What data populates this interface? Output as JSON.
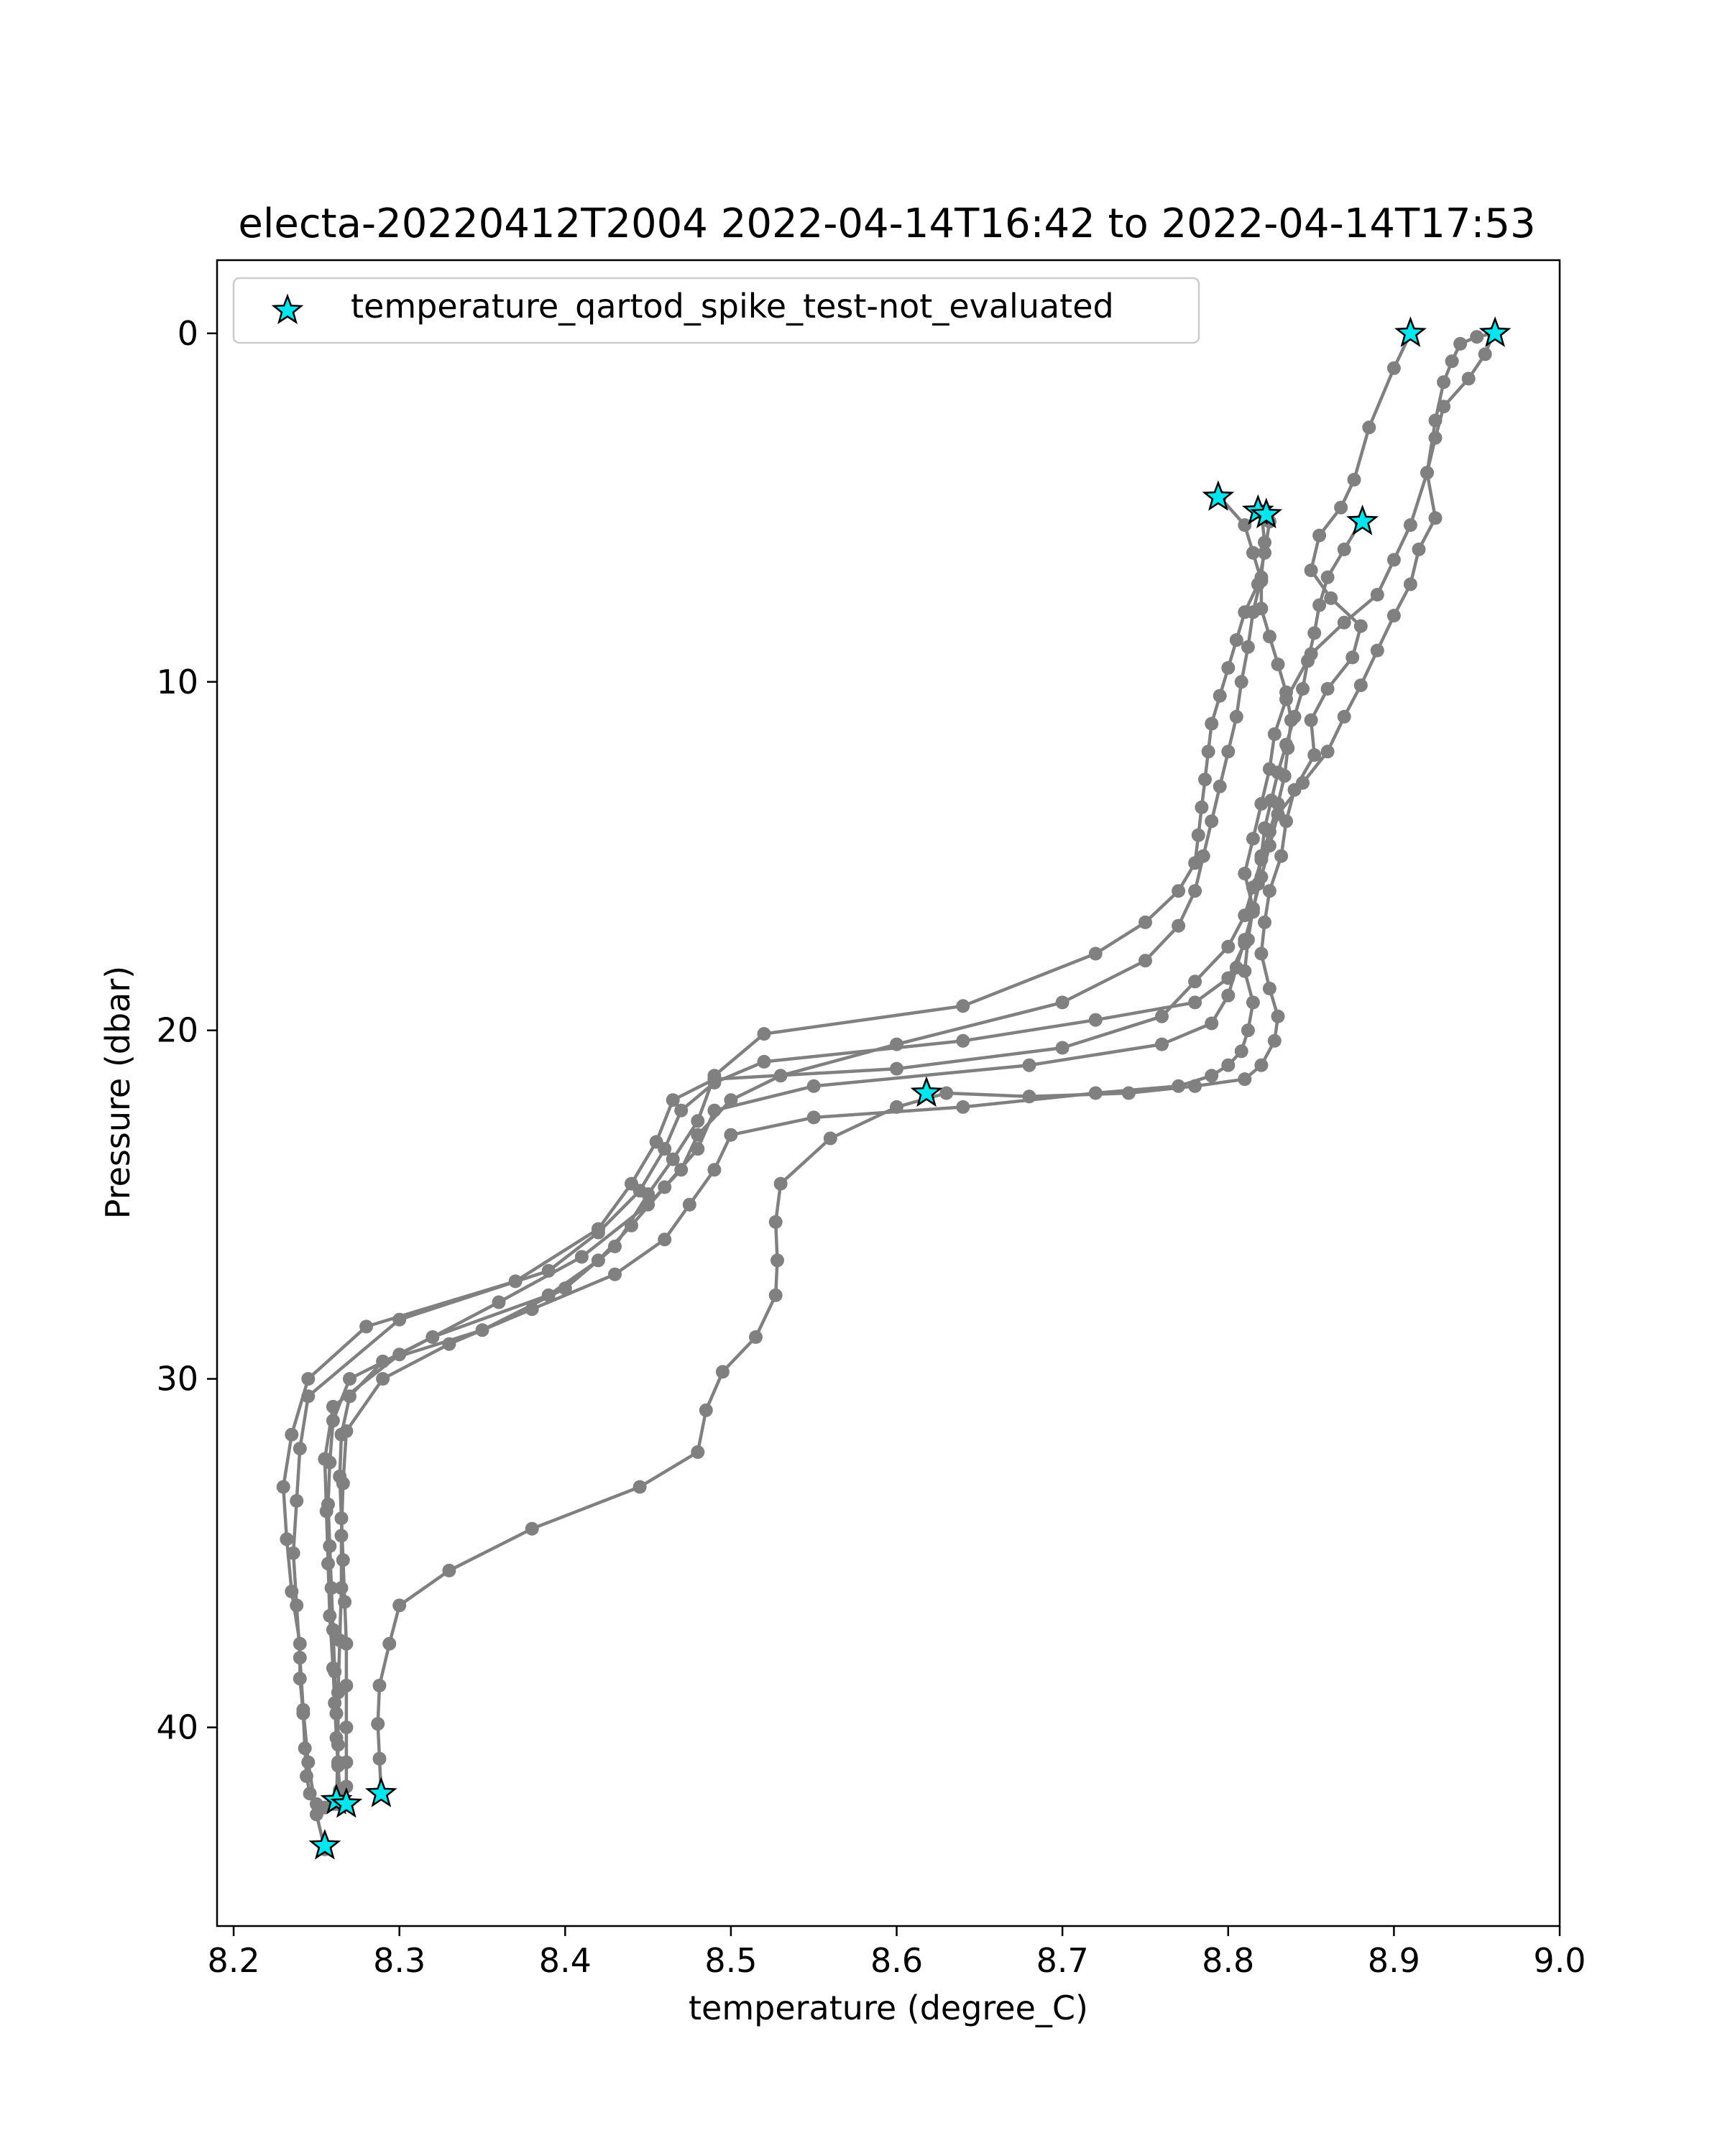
{
  "chart_data": {
    "type": "line",
    "title": "electa-20220412T2004 2022-04-14T16:42 to 2022-04-14T17:53",
    "xlabel": "temperature (degree_C)",
    "ylabel": "Pressure (dbar)",
    "xlim": [
      8.19,
      9.0
    ],
    "ylim": [
      45.7,
      -2.1
    ],
    "y_inverted": true,
    "xticks": [
      8.2,
      8.3,
      8.4,
      8.5,
      8.6,
      8.7,
      8.8,
      8.9,
      9.0
    ],
    "xtick_labels": [
      "8.2",
      "8.3",
      "8.4",
      "8.5",
      "8.6",
      "8.7",
      "8.8",
      "8.9",
      "9.0"
    ],
    "yticks": [
      0,
      10,
      20,
      30,
      40
    ],
    "ytick_labels": [
      "0",
      "10",
      "20",
      "30",
      "40"
    ],
    "grid": false,
    "legend": {
      "location": "upper left",
      "entries": [
        "temperature_qartod_spike_test-not_evaluated"
      ]
    },
    "colors": {
      "profile_line": "#808080",
      "marker_fill": "#00e5ee",
      "marker_edge": "#000000"
    },
    "series": [
      {
        "x": [
          8.91,
          8.9,
          8.885,
          8.876,
          8.868,
          8.855,
          8.85,
          8.862,
          8.88,
          8.875,
          8.86,
          8.85,
          8.852,
          8.84,
          8.835,
          8.832,
          8.825,
          8.822,
          8.82,
          8.825,
          8.83,
          8.828,
          8.82,
          8.81,
          8.78,
          8.74,
          8.68,
          8.63,
          8.6,
          8.56,
          8.53,
          8.527,
          8.528,
          8.527,
          8.515,
          8.495,
          8.485,
          8.48,
          8.445,
          8.38,
          8.33,
          8.3,
          8.294,
          8.288,
          8.287,
          8.288,
          8.289
        ],
        "y": [
          0,
          1,
          2.7,
          4.2,
          5,
          5.8,
          6.8,
          7.6,
          8.4,
          9.3,
          10.2,
          11.1,
          12.1,
          13.1,
          14.0,
          15.0,
          16.0,
          16.9,
          17.8,
          18.8,
          19.6,
          20.3,
          21.0,
          21.4,
          21.6,
          21.8,
          21.9,
          21.8,
          22.2,
          23.1,
          24.4,
          25.5,
          26.6,
          27.6,
          28.8,
          29.8,
          30.9,
          32.1,
          33.1,
          34.3,
          35.5,
          36.5,
          37.6,
          38.8,
          39.9,
          40.9,
          41.9
        ]
      },
      {
        "x": [
          8.96,
          8.955,
          8.945,
          8.93,
          8.925,
          8.92,
          8.925,
          8.915,
          8.91,
          8.9,
          8.89,
          8.88,
          8.87,
          8.86,
          8.845,
          8.83,
          8.825,
          8.82,
          8.815,
          8.812,
          8.81,
          8.815,
          8.812,
          8.808,
          8.8,
          8.79,
          8.77,
          8.72,
          8.64,
          8.55,
          8.5,
          8.49,
          8.475,
          8.46,
          8.43,
          8.38,
          8.33,
          8.29,
          8.268,
          8.266,
          8.265,
          8.265,
          8.264,
          8.263,
          8.263,
          8.262
        ],
        "y": [
          0,
          0.6,
          1.3,
          2.1,
          3,
          4,
          5.3,
          6.2,
          7.2,
          8.1,
          9.1,
          10.1,
          11.0,
          12.0,
          12.9,
          13.8,
          14.7,
          15.6,
          16.5,
          17.4,
          18.3,
          19.2,
          20.0,
          20.6,
          21.0,
          21.3,
          21.6,
          21.8,
          22.2,
          22.5,
          23.0,
          24.0,
          25.0,
          26.0,
          27.0,
          28.0,
          29.0,
          30.0,
          31.5,
          33.0,
          34.5,
          36.0,
          37.5,
          39.0,
          40.5,
          42.2
        ]
      },
      {
        "x": [
          8.96,
          8.95,
          8.94,
          8.935,
          8.93,
          8.925,
          8.92,
          8.91,
          8.9,
          8.89,
          8.87,
          8.85,
          8.835,
          8.828,
          8.825,
          8.82,
          8.815,
          8.81,
          8.815,
          8.81,
          8.8,
          8.78,
          8.72,
          8.64,
          8.52,
          8.49,
          8.47,
          8.46,
          8.445,
          8.42,
          8.39,
          8.3,
          8.245,
          8.24,
          8.238,
          8.236,
          8.238,
          8.24,
          8.242,
          8.245,
          8.25,
          8.255
        ],
        "y": [
          0,
          0.1,
          0.3,
          0.8,
          1.4,
          2.5,
          4,
          5.5,
          6.5,
          7.5,
          8.3,
          9.2,
          10.5,
          11.5,
          12.5,
          13.5,
          14.5,
          15.5,
          16.5,
          17.5,
          18.5,
          19.2,
          19.7,
          20.3,
          20.9,
          21.5,
          22.3,
          23.4,
          24.6,
          25.8,
          26.9,
          28.3,
          30.5,
          32.0,
          33.5,
          35.0,
          36.5,
          38.0,
          39.5,
          41.0,
          42.5,
          43.5
        ]
      },
      {
        "x": [
          8.795,
          8.81,
          8.815,
          8.82,
          8.82,
          8.825,
          8.83,
          8.835,
          8.838,
          8.836,
          8.834,
          8.83,
          8.825,
          8.82,
          8.815,
          8.81,
          8.8,
          8.78,
          8.76,
          8.7,
          8.6,
          8.49,
          8.465,
          8.455,
          8.44,
          8.42,
          8.37,
          8.28,
          8.245,
          8.235,
          8.23,
          8.232,
          8.235,
          8.24,
          8.24,
          8.242,
          8.243,
          8.244,
          8.246,
          8.25,
          8.255,
          8.26
        ],
        "y": [
          4.7,
          5.5,
          6.3,
          7.1,
          7.9,
          8.7,
          9.5,
          10.3,
          11.1,
          11.9,
          12.7,
          13.5,
          14.3,
          15.1,
          15.9,
          16.7,
          17.6,
          18.6,
          19.6,
          20.5,
          21.1,
          21.4,
          22.0,
          23.2,
          24.4,
          25.7,
          27.2,
          28.5,
          30.0,
          31.6,
          33.1,
          34.6,
          36.1,
          37.6,
          38.6,
          39.6,
          40.6,
          41.4,
          41.9,
          42.2,
          42.3,
          42.2
        ]
      },
      {
        "x": [
          8.82,
          8.822,
          8.82,
          8.815,
          8.812,
          8.808,
          8.805,
          8.8,
          8.795,
          8.79,
          8.785,
          8.78,
          8.77,
          8.75,
          8.7,
          8.6,
          8.53,
          8.5,
          8.48,
          8.47,
          8.45,
          8.41,
          8.36,
          8.3,
          8.26,
          8.255,
          8.256,
          8.257,
          8.258,
          8.26,
          8.261,
          8.262,
          8.263,
          8.264,
          8.265
        ],
        "y": [
          5.1,
          6.0,
          7.0,
          8.0,
          9.0,
          10.0,
          11.0,
          12.0,
          13.0,
          14.0,
          15.0,
          16.0,
          17.0,
          18.0,
          19.2,
          20.4,
          21.3,
          22.0,
          23.0,
          24.0,
          25.0,
          26.5,
          27.8,
          29.3,
          30.8,
          32.3,
          33.8,
          35.3,
          36.8,
          38.3,
          39.3,
          40.3,
          41.1,
          41.8,
          42.2
        ]
      },
      {
        "x": [
          8.825,
          8.822,
          8.818,
          8.81,
          8.805,
          8.8,
          8.795,
          8.79,
          8.788,
          8.786,
          8.784,
          8.782,
          8.78,
          8.77,
          8.75,
          8.72,
          8.64,
          8.52,
          8.49,
          8.48,
          8.465,
          8.45,
          8.43,
          8.4,
          8.35,
          8.29,
          8.27,
          8.265,
          8.264,
          8.265,
          8.266,
          8.267,
          8.268,
          8.268,
          8.268,
          8.268,
          8.268,
          8.268
        ],
        "y": [
          5.4,
          6.3,
          7.2,
          8.0,
          8.8,
          9.6,
          10.4,
          11.2,
          12.0,
          12.8,
          13.6,
          14.4,
          15.2,
          16.0,
          16.9,
          17.8,
          19.3,
          20.1,
          21.3,
          22.6,
          23.7,
          24.7,
          26.2,
          27.4,
          28.6,
          29.5,
          30.5,
          31.6,
          32.8,
          34.0,
          35.2,
          36.4,
          37.6,
          38.8,
          40.0,
          41.0,
          41.7,
          42.2
        ]
      },
      {
        "x": [
          8.88,
          8.87,
          8.86,
          8.855,
          8.852,
          8.848,
          8.845,
          8.84,
          8.835,
          8.83,
          8.826,
          8.822,
          8.82,
          8.818,
          8.815,
          8.81,
          8.805,
          8.8,
          8.79,
          8.76,
          8.68,
          8.55,
          8.49,
          8.48,
          8.46,
          8.44,
          8.42,
          8.39,
          8.32,
          8.27,
          8.26,
          8.258,
          8.257,
          8.258,
          8.259,
          8.26,
          8.261,
          8.262,
          8.263
        ],
        "y": [
          5.4,
          6.2,
          7.0,
          7.8,
          8.6,
          9.4,
          10.2,
          11.0,
          11.8,
          12.6,
          13.4,
          14.2,
          15.0,
          15.8,
          16.6,
          17.4,
          18.2,
          19.0,
          19.8,
          20.4,
          21.0,
          21.6,
          22.3,
          23.4,
          24.5,
          25.6,
          26.6,
          27.6,
          28.8,
          30.0,
          31.2,
          32.4,
          33.6,
          34.8,
          36.0,
          37.2,
          38.4,
          39.6,
          41.0
        ]
      }
    ],
    "flagged_points": {
      "name": "temperature_qartod_spike_test-not_evaluated",
      "x": [
        8.91,
        8.961,
        8.794,
        8.818,
        8.823,
        8.881,
        8.618,
        8.289,
        8.262,
        8.268,
        8.255
      ],
      "y": [
        0.0,
        0.0,
        4.7,
        5.1,
        5.2,
        5.4,
        21.8,
        41.9,
        42.1,
        42.2,
        43.4
      ]
    }
  }
}
